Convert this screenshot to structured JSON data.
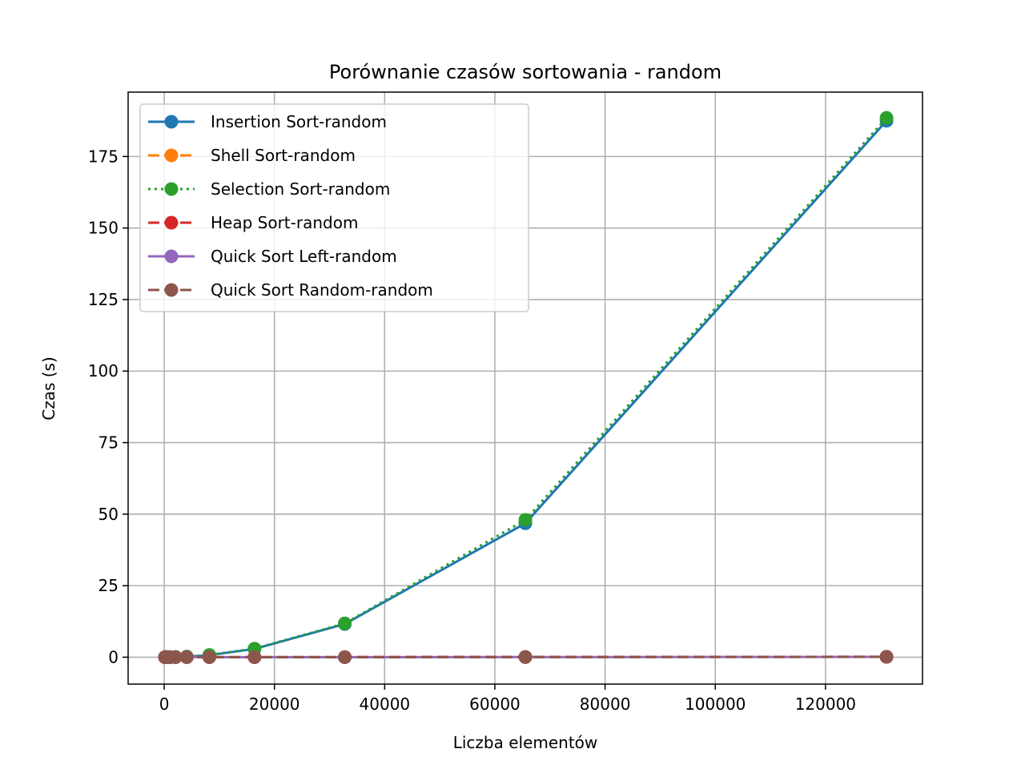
{
  "chart_data": {
    "type": "line",
    "title": "Porównanie czasów sortowania - random",
    "xlabel": "Liczba elementów",
    "ylabel": "Czas (s)",
    "xlim": [
      -6550,
      137600
    ],
    "ylim": [
      -9.4,
      197.5
    ],
    "xticks": [
      0,
      20000,
      40000,
      60000,
      80000,
      100000,
      120000
    ],
    "yticks": [
      0,
      25,
      50,
      75,
      100,
      125,
      150,
      175
    ],
    "grid": true,
    "legend_position": "upper-left",
    "x": [
      128,
      256,
      512,
      1024,
      2048,
      4096,
      8192,
      16384,
      32768,
      65536,
      131072
    ],
    "series": [
      {
        "name": "Insertion Sort-random",
        "color": "#1f77b4",
        "dash": "solid",
        "values": [
          0.0,
          0.0,
          0.01,
          0.03,
          0.1,
          0.2,
          0.7,
          2.9,
          11.6,
          46.8,
          187.5
        ]
      },
      {
        "name": "Shell Sort-random",
        "color": "#ff7f0e",
        "dash": "dashed",
        "values": [
          0.0,
          0.0,
          0.0,
          0.0,
          0.0,
          0.0,
          0.0,
          0.01,
          0.02,
          0.05,
          0.12
        ]
      },
      {
        "name": "Selection Sort-random",
        "color": "#2ca02c",
        "dash": "dotted",
        "values": [
          0.0,
          0.0,
          0.01,
          0.03,
          0.1,
          0.2,
          0.8,
          3.0,
          11.8,
          48.0,
          188.5
        ]
      },
      {
        "name": "Heap Sort-random",
        "color": "#d62728",
        "dash": "dashed",
        "values": [
          0.0,
          0.0,
          0.0,
          0.0,
          0.0,
          0.0,
          0.0,
          0.01,
          0.03,
          0.07,
          0.15
        ]
      },
      {
        "name": "Quick Sort Left-random",
        "color": "#9467bd",
        "dash": "solid",
        "values": [
          0.0,
          0.0,
          0.0,
          0.0,
          0.0,
          0.0,
          0.0,
          0.01,
          0.02,
          0.05,
          0.11
        ]
      },
      {
        "name": "Quick Sort Random-random",
        "color": "#8c564b",
        "dash": "dashed",
        "values": [
          0.0,
          0.0,
          0.0,
          0.0,
          0.0,
          0.0,
          0.0,
          0.01,
          0.02,
          0.05,
          0.12
        ]
      }
    ]
  }
}
